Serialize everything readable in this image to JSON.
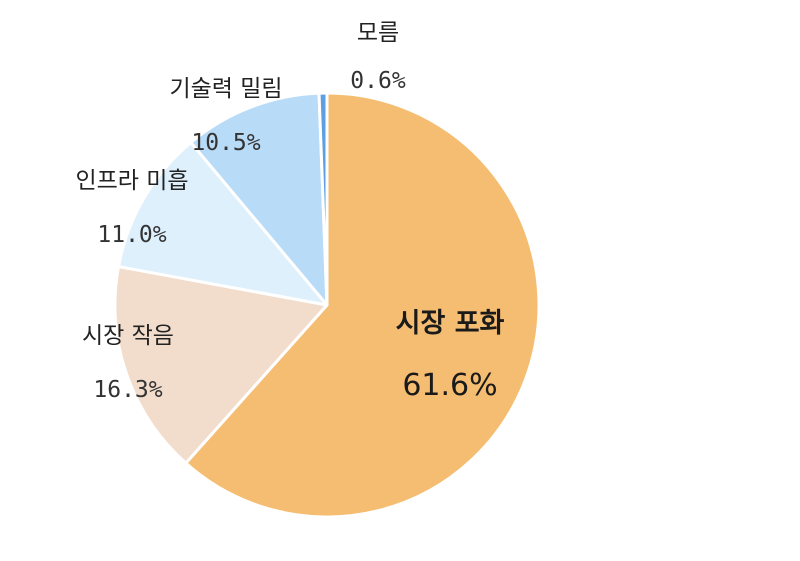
{
  "chart_data": {
    "type": "pie",
    "title": "",
    "start_angle_deg": 0,
    "direction": "clockwise",
    "slices": [
      {
        "label": "시장 포화",
        "value": 61.6,
        "pct_label": "61.6%",
        "color": "#f5bd71"
      },
      {
        "label": "시장 작음",
        "value": 16.3,
        "pct_label": "16.3%",
        "color": "#f2dccb"
      },
      {
        "label": "인프라 미흡",
        "value": 11.0,
        "pct_label": "11.0%",
        "color": "#def0fc"
      },
      {
        "label": "기술력 밀림",
        "value": 10.5,
        "pct_label": "10.5%",
        "color": "#b8dbf7"
      },
      {
        "label": "모름",
        "value": 0.6,
        "pct_label": "0.6%",
        "color": "#5d9fe0"
      }
    ]
  }
}
